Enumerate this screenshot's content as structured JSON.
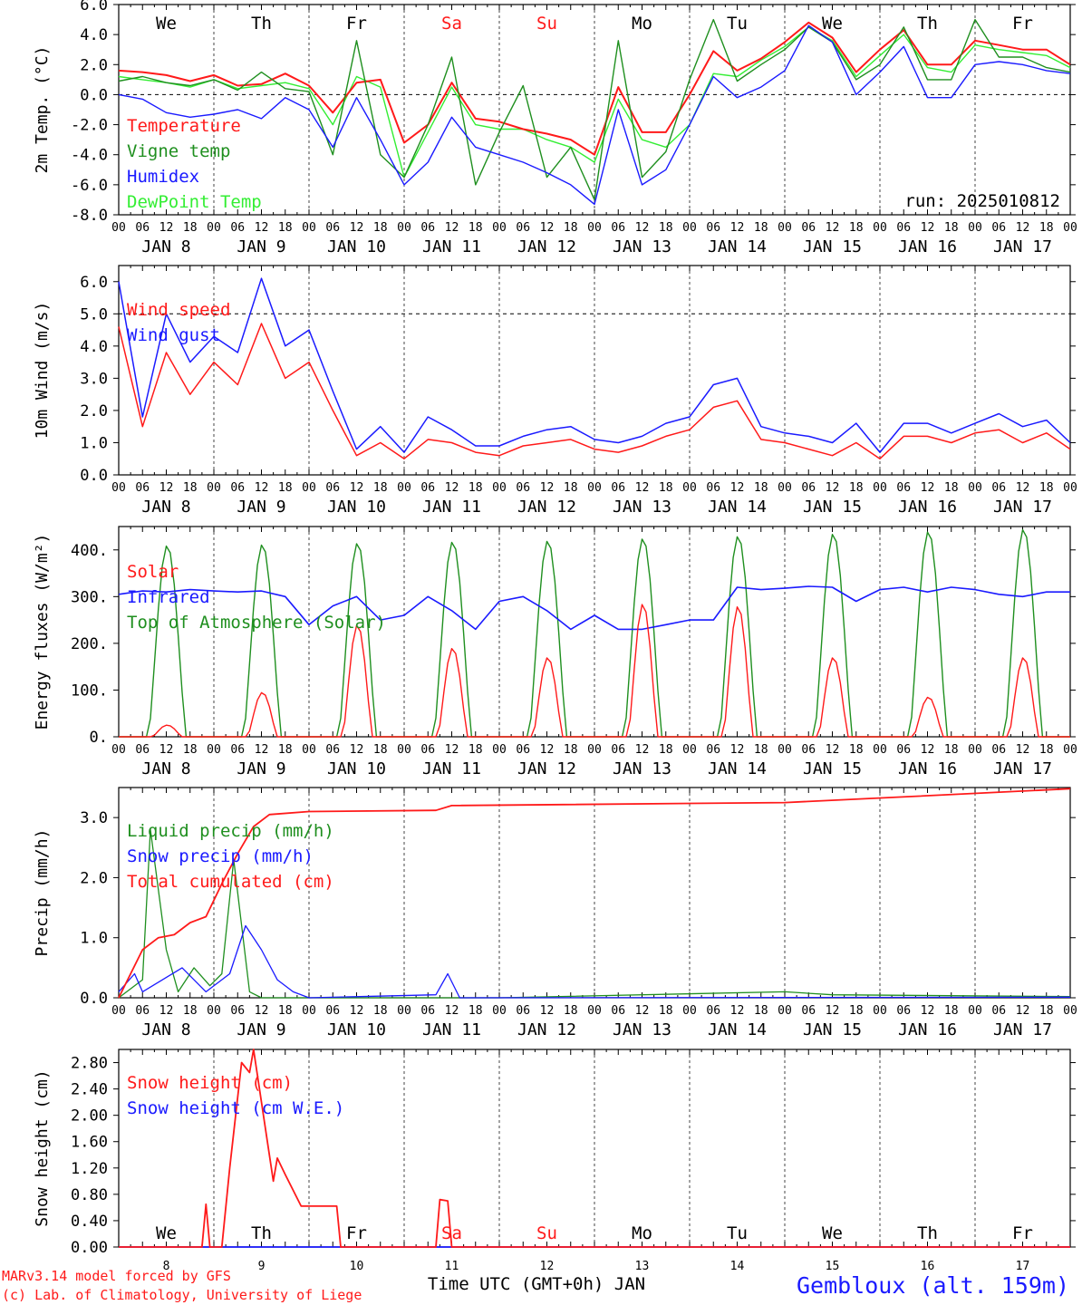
{
  "footer": {
    "model_line": "MARv3.14 model forced by GFS",
    "lab_line": "(c) Lab. of Climatology, University of Liege",
    "xaxis_title": "Time UTC (GMT+0h) JAN",
    "station": "Gembloux (alt. 159m)"
  },
  "colors": {
    "red": "#ff1a1a",
    "darkgreen": "#1f8f1f",
    "blue": "#1a1aff",
    "lightgreen": "#33ee33",
    "black": "#000000"
  },
  "days": {
    "weekday_labels": [
      "We",
      "Th",
      "Fr",
      "Sa",
      "Su",
      "Mo",
      "Tu",
      "We",
      "Th",
      "Fr"
    ],
    "weekday_colors": [
      "#000000",
      "#000000",
      "#000000",
      "#ff1a1a",
      "#ff1a1a",
      "#000000",
      "#000000",
      "#000000",
      "#000000",
      "#000000"
    ],
    "month_labels": [
      "JAN  8",
      "JAN  9",
      "JAN 10",
      "JAN 11",
      "JAN 12",
      "JAN 13",
      "JAN 14",
      "JAN 15",
      "JAN 16",
      "JAN 17"
    ],
    "hour_labels": [
      "00",
      "06",
      "12",
      "18"
    ],
    "final_hour_label": "00",
    "date_numbers": [
      "8",
      "9",
      "10",
      "11",
      "12",
      "13",
      "14",
      "15",
      "16",
      "17"
    ]
  },
  "chart_data": [
    {
      "type": "line",
      "ylabel": "2m Temp. (°C)",
      "ylim": [
        -8,
        6
      ],
      "ytick_labels": [
        "-8.0",
        "-6.0",
        "-4.0",
        "-2.0",
        "0.0",
        "2.0",
        "4.0",
        "6.0"
      ],
      "annotation": "run: 2025010812",
      "x_hours": [
        0,
        6,
        12,
        18,
        24,
        30,
        36,
        42,
        48,
        54,
        60,
        66,
        72,
        78,
        84,
        90,
        96,
        102,
        108,
        114,
        120,
        126,
        132,
        138,
        144,
        150,
        156,
        162,
        168,
        174,
        180,
        186,
        192,
        198,
        204,
        210,
        216,
        222,
        228,
        234,
        240
      ],
      "series": [
        {
          "name": "Temperature",
          "color": "#ff1a1a",
          "values": [
            1.6,
            1.5,
            1.3,
            0.9,
            1.3,
            0.6,
            0.7,
            1.4,
            0.6,
            -1.2,
            0.8,
            1.0,
            -3.2,
            -2.0,
            0.8,
            -1.6,
            -1.8,
            -2.3,
            -2.6,
            -3.0,
            -4.0,
            0.5,
            -2.5,
            -2.5,
            0.0,
            2.9,
            1.6,
            2.4,
            3.5,
            4.8,
            3.8,
            1.5,
            3.0,
            4.3,
            2.0,
            2.0,
            3.6,
            3.3,
            3.0,
            3.0,
            2.0
          ]
        },
        {
          "name": "Vigne temp",
          "color": "#1f8f1f",
          "values": [
            0.9,
            1.2,
            0.8,
            0.6,
            1.0,
            0.3,
            1.5,
            0.4,
            0.2,
            -4.0,
            3.6,
            -4.0,
            -5.5,
            -2.0,
            2.5,
            -6.0,
            -2.5,
            0.6,
            -5.5,
            -3.5,
            -7.0,
            3.6,
            -5.5,
            -3.8,
            1.0,
            5.0,
            0.9,
            2.0,
            3.0,
            4.5,
            3.5,
            1.0,
            2.0,
            4.5,
            1.0,
            1.0,
            5.0,
            2.5,
            2.5,
            1.8,
            1.5
          ]
        },
        {
          "name": "Humidex",
          "color": "#1a1aff",
          "values": [
            0.0,
            -0.3,
            -1.2,
            -1.5,
            -1.3,
            -1.0,
            -1.6,
            -0.2,
            -1.0,
            -3.5,
            -0.2,
            -3.0,
            -6.0,
            -4.5,
            -1.5,
            -3.5,
            -4.0,
            -4.5,
            -5.2,
            -6.0,
            -7.3,
            -1.0,
            -6.0,
            -5.0,
            -2.0,
            1.2,
            -0.2,
            0.5,
            1.6,
            4.6,
            3.5,
            0.0,
            1.5,
            3.2,
            -0.2,
            -0.2,
            2.0,
            2.2,
            2.0,
            1.6,
            1.4
          ]
        },
        {
          "name": "DewPoint Temp",
          "color": "#33ee33",
          "values": [
            1.2,
            1.0,
            0.8,
            0.5,
            1.0,
            0.4,
            0.6,
            0.8,
            0.4,
            -2.0,
            1.2,
            0.5,
            -5.5,
            -2.5,
            0.5,
            -2.0,
            -2.3,
            -2.3,
            -3.0,
            -3.5,
            -4.5,
            -0.3,
            -3.0,
            -3.5,
            -2.0,
            1.4,
            1.2,
            2.3,
            3.2,
            4.5,
            3.6,
            1.2,
            2.6,
            4.0,
            1.8,
            1.5,
            3.3,
            3.0,
            2.8,
            2.6,
            1.8
          ]
        }
      ]
    },
    {
      "type": "line",
      "ylabel": "10m Wind (m/s)",
      "ylim": [
        0,
        6.5
      ],
      "ytick_labels": [
        "0.0",
        "1.0",
        "2.0",
        "3.0",
        "4.0",
        "5.0",
        "6.0"
      ],
      "x_hours": [
        0,
        6,
        12,
        18,
        24,
        30,
        36,
        42,
        48,
        54,
        60,
        66,
        72,
        78,
        84,
        90,
        96,
        102,
        108,
        114,
        120,
        126,
        132,
        138,
        144,
        150,
        156,
        162,
        168,
        174,
        180,
        186,
        192,
        198,
        204,
        210,
        216,
        222,
        228,
        234,
        240
      ],
      "series": [
        {
          "name": "Wind speed",
          "color": "#ff1a1a",
          "values": [
            4.6,
            1.5,
            3.8,
            2.5,
            3.5,
            2.8,
            4.7,
            3.0,
            3.5,
            2.0,
            0.6,
            1.0,
            0.5,
            1.1,
            1.0,
            0.7,
            0.6,
            0.9,
            1.0,
            1.1,
            0.8,
            0.7,
            0.9,
            1.2,
            1.4,
            2.1,
            2.3,
            1.1,
            1.0,
            0.8,
            0.6,
            1.0,
            0.5,
            1.2,
            1.2,
            1.0,
            1.3,
            1.4,
            1.0,
            1.3,
            0.8
          ]
        },
        {
          "name": "Wind gust",
          "color": "#1a1aff",
          "values": [
            6.0,
            1.8,
            5.0,
            3.5,
            4.3,
            3.8,
            6.1,
            4.0,
            4.5,
            2.6,
            0.8,
            1.5,
            0.7,
            1.8,
            1.4,
            0.9,
            0.9,
            1.2,
            1.4,
            1.5,
            1.1,
            1.0,
            1.2,
            1.6,
            1.8,
            2.8,
            3.0,
            1.5,
            1.3,
            1.2,
            1.0,
            1.6,
            0.7,
            1.6,
            1.6,
            1.3,
            1.6,
            1.9,
            1.5,
            1.7,
            1.0
          ]
        }
      ]
    },
    {
      "type": "line",
      "ylabel": "Energy fluxes (W/m²)",
      "ylim": [
        0,
        450
      ],
      "ytick_labels": [
        "0.",
        "100.",
        "200.",
        "300.",
        "400."
      ],
      "daily_peaks": {
        "Solar": [
          25,
          95,
          240,
          190,
          170,
          285,
          280,
          170,
          85,
          170
        ],
        "Top of Atmosphere (Solar)": [
          410,
          412,
          415,
          418,
          420,
          425,
          430,
          435,
          440,
          445
        ]
      },
      "infrared": {
        "x_hours": [
          0,
          6,
          12,
          18,
          24,
          30,
          36,
          42,
          48,
          54,
          60,
          66,
          72,
          78,
          84,
          90,
          96,
          102,
          108,
          114,
          120,
          126,
          132,
          138,
          144,
          150,
          156,
          162,
          168,
          174,
          180,
          186,
          192,
          198,
          204,
          210,
          216,
          222,
          228,
          234,
          240
        ],
        "values": [
          305,
          312,
          310,
          315,
          312,
          310,
          312,
          300,
          240,
          280,
          300,
          250,
          260,
          300,
          270,
          230,
          290,
          300,
          270,
          230,
          260,
          230,
          230,
          240,
          250,
          250,
          320,
          315,
          318,
          322,
          320,
          290,
          315,
          320,
          310,
          320,
          315,
          305,
          300,
          310,
          310
        ]
      },
      "series": [
        {
          "name": "Solar",
          "color": "#ff1a1a"
        },
        {
          "name": "Infrared",
          "color": "#1a1aff"
        },
        {
          "name": "Top of Atmosphere (Solar)",
          "color": "#1f8f1f"
        }
      ]
    },
    {
      "type": "line",
      "ylabel": "Precip (mm/h)",
      "ylim": [
        0,
        3.5
      ],
      "ytick_labels": [
        "0.0",
        "1.0",
        "2.0",
        "3.0"
      ],
      "series": [
        {
          "name": "Liquid precip (mm/h)",
          "color": "#1f8f1f",
          "points": [
            [
              0,
              0
            ],
            [
              6,
              0.3
            ],
            [
              8,
              2.8
            ],
            [
              12,
              0.8
            ],
            [
              15,
              0.1
            ],
            [
              19,
              0.5
            ],
            [
              23,
              0.2
            ],
            [
              26,
              0.4
            ],
            [
              29,
              2.3
            ],
            [
              33,
              0.1
            ],
            [
              36,
              0
            ],
            [
              96,
              0
            ],
            [
              168,
              0.1
            ],
            [
              180,
              0.05
            ],
            [
              240,
              0.02
            ]
          ]
        },
        {
          "name": "Snow precip (mm/h)",
          "color": "#1a1aff",
          "points": [
            [
              0,
              0.1
            ],
            [
              4,
              0.4
            ],
            [
              6,
              0.1
            ],
            [
              16,
              0.5
            ],
            [
              22,
              0.1
            ],
            [
              28,
              0.4
            ],
            [
              32,
              1.2
            ],
            [
              36,
              0.8
            ],
            [
              40,
              0.3
            ],
            [
              44,
              0.1
            ],
            [
              48,
              0
            ],
            [
              80,
              0.05
            ],
            [
              83,
              0.4
            ],
            [
              86,
              0
            ],
            [
              240,
              0.01
            ]
          ]
        },
        {
          "name": "Total cumulated (cm)",
          "color": "#ff1a1a",
          "points": [
            [
              0,
              0
            ],
            [
              6,
              0.8
            ],
            [
              10,
              1.0
            ],
            [
              14,
              1.05
            ],
            [
              18,
              1.25
            ],
            [
              22,
              1.35
            ],
            [
              26,
              1.9
            ],
            [
              30,
              2.4
            ],
            [
              34,
              2.85
            ],
            [
              38,
              3.05
            ],
            [
              48,
              3.1
            ],
            [
              80,
              3.12
            ],
            [
              84,
              3.2
            ],
            [
              168,
              3.25
            ],
            [
              200,
              3.35
            ],
            [
              240,
              3.48
            ]
          ]
        }
      ]
    },
    {
      "type": "line",
      "ylabel": "Snow height (cm)",
      "ylim": [
        0,
        3.0
      ],
      "ytick_labels": [
        "0.00",
        "0.40",
        "0.80",
        "1.20",
        "1.60",
        "2.00",
        "2.40",
        "2.80"
      ],
      "series": [
        {
          "name": "Snow height (cm)",
          "color": "#ff1a1a",
          "points": [
            [
              0,
              0
            ],
            [
              21,
              0
            ],
            [
              22,
              0.65
            ],
            [
              23,
              0
            ],
            [
              26,
              0
            ],
            [
              28,
              1.2
            ],
            [
              31,
              2.8
            ],
            [
              33,
              2.65
            ],
            [
              34,
              3.0
            ],
            [
              39,
              1.0
            ],
            [
              40,
              1.35
            ],
            [
              42,
              1.1
            ],
            [
              46,
              0.62
            ],
            [
              55,
              0.62
            ],
            [
              56,
              0
            ],
            [
              80,
              0
            ],
            [
              81,
              0.72
            ],
            [
              83,
              0.7
            ],
            [
              84,
              0
            ],
            [
              240,
              0
            ]
          ]
        },
        {
          "name": "Snow height (cm W.E.)",
          "color": "#1a1aff",
          "points": [
            [
              0,
              0
            ],
            [
              240,
              0
            ]
          ]
        }
      ]
    }
  ]
}
